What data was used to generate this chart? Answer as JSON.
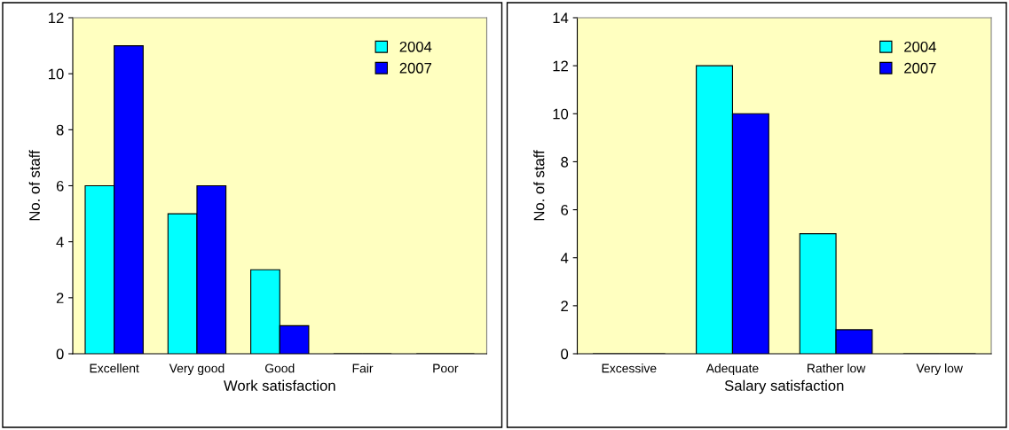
{
  "chart_data": [
    {
      "type": "bar",
      "xlabel": "Work satisfaction",
      "ylabel": "No. of staff",
      "categories": [
        "Excellent",
        "Very good",
        "Good",
        "Fair",
        "Poor"
      ],
      "series": [
        {
          "name": "2004",
          "color": "#00ffff",
          "values": [
            6,
            5,
            3,
            0,
            0
          ]
        },
        {
          "name": "2007",
          "color": "#0000ff",
          "values": [
            11,
            6,
            1,
            0,
            0
          ]
        }
      ],
      "ylim": [
        0,
        12
      ],
      "yticks": [
        0,
        2,
        4,
        6,
        8,
        10,
        12
      ],
      "grid": false,
      "legend": "top right"
    },
    {
      "type": "bar",
      "xlabel": "Salary satisfaction",
      "ylabel": "No. of staff",
      "categories": [
        "Excessive",
        "Adequate",
        "Rather low",
        "Very low"
      ],
      "series": [
        {
          "name": "2004",
          "color": "#00ffff",
          "values": [
            0,
            12,
            5,
            0
          ]
        },
        {
          "name": "2007",
          "color": "#0000ff",
          "values": [
            0,
            10,
            1,
            0
          ]
        }
      ],
      "ylim": [
        0,
        14
      ],
      "yticks": [
        0,
        2,
        4,
        6,
        8,
        10,
        12,
        14
      ],
      "grid": false,
      "legend": "top right"
    }
  ]
}
